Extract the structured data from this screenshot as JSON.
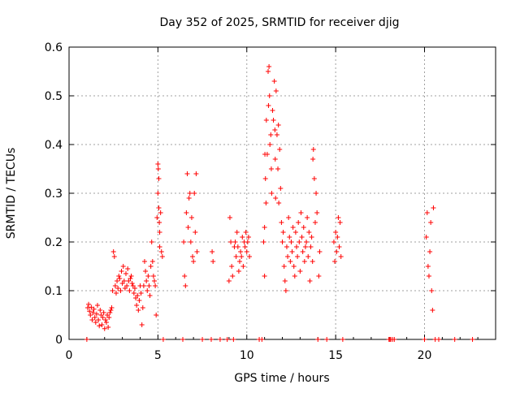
{
  "chart_data": {
    "type": "scatter",
    "title": "Day 352 of 2025, SRMTID for receiver djig",
    "xlabel": "GPS time / hours",
    "ylabel": "SRMTID / TECUs",
    "xlim": [
      0,
      24
    ],
    "ylim": [
      0,
      0.6
    ],
    "x_ticks": [
      0,
      5,
      10,
      15,
      20
    ],
    "y_ticks": [
      0,
      0.1,
      0.2,
      0.3,
      0.4,
      0.5,
      0.6
    ],
    "x_tick_labels": [
      "0",
      "5",
      "10",
      "15",
      "20"
    ],
    "y_tick_labels": [
      "0",
      "0.1",
      "0.2",
      "0.3",
      "0.4",
      "0.5",
      "0.6"
    ],
    "grid": true,
    "marker": "+",
    "marker_color": "#ff0000",
    "series": [
      {
        "name": "SRMTID",
        "points": [
          [
            1.0,
            0.0
          ],
          [
            1.05,
            0.065
          ],
          [
            1.1,
            0.072
          ],
          [
            1.15,
            0.058
          ],
          [
            1.2,
            0.05
          ],
          [
            1.25,
            0.066
          ],
          [
            1.3,
            0.04
          ],
          [
            1.35,
            0.055
          ],
          [
            1.4,
            0.062
          ],
          [
            1.45,
            0.045
          ],
          [
            1.5,
            0.035
          ],
          [
            1.55,
            0.052
          ],
          [
            1.6,
            0.07
          ],
          [
            1.65,
            0.04
          ],
          [
            1.7,
            0.028
          ],
          [
            1.75,
            0.06
          ],
          [
            1.8,
            0.05
          ],
          [
            1.85,
            0.03
          ],
          [
            1.9,
            0.045
          ],
          [
            1.95,
            0.055
          ],
          [
            2.0,
            0.022
          ],
          [
            2.05,
            0.04
          ],
          [
            2.1,
            0.035
          ],
          [
            2.15,
            0.05
          ],
          [
            2.2,
            0.025
          ],
          [
            2.25,
            0.045
          ],
          [
            2.3,
            0.055
          ],
          [
            2.35,
            0.06
          ],
          [
            2.4,
            0.065
          ],
          [
            2.45,
            0.1
          ],
          [
            2.5,
            0.18
          ],
          [
            2.55,
            0.17
          ],
          [
            2.6,
            0.11
          ],
          [
            2.65,
            0.095
          ],
          [
            2.7,
            0.12
          ],
          [
            2.75,
            0.105
          ],
          [
            2.8,
            0.13
          ],
          [
            2.85,
            0.125
          ],
          [
            2.9,
            0.1
          ],
          [
            2.95,
            0.14
          ],
          [
            3.0,
            0.115
          ],
          [
            3.05,
            0.15
          ],
          [
            3.1,
            0.12
          ],
          [
            3.15,
            0.105
          ],
          [
            3.2,
            0.135
          ],
          [
            3.25,
            0.11
          ],
          [
            3.3,
            0.145
          ],
          [
            3.35,
            0.12
          ],
          [
            3.4,
            0.1
          ],
          [
            3.45,
            0.125
          ],
          [
            3.5,
            0.13
          ],
          [
            3.55,
            0.115
          ],
          [
            3.6,
            0.11
          ],
          [
            3.65,
            0.095
          ],
          [
            3.7,
            0.105
          ],
          [
            3.75,
            0.085
          ],
          [
            3.8,
            0.07
          ],
          [
            3.85,
            0.09
          ],
          [
            3.9,
            0.06
          ],
          [
            3.95,
            0.08
          ],
          [
            4.0,
            0.11
          ],
          [
            4.05,
            0.095
          ],
          [
            4.1,
            0.03
          ],
          [
            4.15,
            0.065
          ],
          [
            4.2,
            0.11
          ],
          [
            4.25,
            0.16
          ],
          [
            4.3,
            0.14
          ],
          [
            4.35,
            0.12
          ],
          [
            4.4,
            0.1
          ],
          [
            4.45,
            0.13
          ],
          [
            4.5,
            0.11
          ],
          [
            4.55,
            0.09
          ],
          [
            4.6,
            0.15
          ],
          [
            4.65,
            0.2
          ],
          [
            4.7,
            0.16
          ],
          [
            4.75,
            0.13
          ],
          [
            4.8,
            0.12
          ],
          [
            4.85,
            0.11
          ],
          [
            4.9,
            0.05
          ],
          [
            4.95,
            0.25
          ],
          [
            5.0,
            0.3
          ],
          [
            5.0,
            0.36
          ],
          [
            5.02,
            0.35
          ],
          [
            5.05,
            0.33
          ],
          [
            5.05,
            0.27
          ],
          [
            5.08,
            0.24
          ],
          [
            5.1,
            0.22
          ],
          [
            5.1,
            0.19
          ],
          [
            5.15,
            0.26
          ],
          [
            5.2,
            0.18
          ],
          [
            5.25,
            0.17
          ],
          [
            5.3,
            0.0
          ],
          [
            6.4,
            0.0
          ],
          [
            6.45,
            0.2
          ],
          [
            6.5,
            0.13
          ],
          [
            6.55,
            0.11
          ],
          [
            6.6,
            0.26
          ],
          [
            6.65,
            0.34
          ],
          [
            6.7,
            0.23
          ],
          [
            6.75,
            0.29
          ],
          [
            6.8,
            0.3
          ],
          [
            6.85,
            0.2
          ],
          [
            6.9,
            0.25
          ],
          [
            6.95,
            0.17
          ],
          [
            7.0,
            0.16
          ],
          [
            7.05,
            0.3
          ],
          [
            7.1,
            0.22
          ],
          [
            7.15,
            0.34
          ],
          [
            7.2,
            0.18
          ],
          [
            7.5,
            0.0
          ],
          [
            8.0,
            0.0
          ],
          [
            8.05,
            0.18
          ],
          [
            8.1,
            0.16
          ],
          [
            8.5,
            0.0
          ],
          [
            8.9,
            0.0
          ],
          [
            9.0,
            0.12
          ],
          [
            9.05,
            0.25
          ],
          [
            9.1,
            0.2
          ],
          [
            9.15,
            0.15
          ],
          [
            9.2,
            0.13
          ],
          [
            9.25,
            0.0
          ],
          [
            9.3,
            0.19
          ],
          [
            9.35,
            0.2
          ],
          [
            9.4,
            0.17
          ],
          [
            9.45,
            0.22
          ],
          [
            9.5,
            0.19
          ],
          [
            9.55,
            0.14
          ],
          [
            9.6,
            0.16
          ],
          [
            9.65,
            0.18
          ],
          [
            9.7,
            0.17
          ],
          [
            9.75,
            0.21
          ],
          [
            9.8,
            0.15
          ],
          [
            9.85,
            0.2
          ],
          [
            9.9,
            0.19
          ],
          [
            9.95,
            0.22
          ],
          [
            10.0,
            0.18
          ],
          [
            10.05,
            0.2
          ],
          [
            10.1,
            0.21
          ],
          [
            10.15,
            0.17
          ],
          [
            10.7,
            0.0
          ],
          [
            10.85,
            0.0
          ],
          [
            10.95,
            0.2
          ],
          [
            11.0,
            0.23
          ],
          [
            11.0,
            0.13
          ],
          [
            11.02,
            0.38
          ],
          [
            11.05,
            0.33
          ],
          [
            11.08,
            0.28
          ],
          [
            11.1,
            0.45
          ],
          [
            11.15,
            0.38
          ],
          [
            11.2,
            0.55
          ],
          [
            11.22,
            0.48
          ],
          [
            11.25,
            0.56
          ],
          [
            11.28,
            0.5
          ],
          [
            11.3,
            0.4
          ],
          [
            11.35,
            0.42
          ],
          [
            11.38,
            0.35
          ],
          [
            11.4,
            0.3
          ],
          [
            11.45,
            0.47
          ],
          [
            11.5,
            0.45
          ],
          [
            11.55,
            0.53
          ],
          [
            11.58,
            0.43
          ],
          [
            11.6,
            0.37
          ],
          [
            11.62,
            0.29
          ],
          [
            11.65,
            0.51
          ],
          [
            11.7,
            0.42
          ],
          [
            11.75,
            0.35
          ],
          [
            11.78,
            0.44
          ],
          [
            11.8,
            0.28
          ],
          [
            11.85,
            0.39
          ],
          [
            11.9,
            0.31
          ],
          [
            11.95,
            0.24
          ],
          [
            12.0,
            0.2
          ],
          [
            12.05,
            0.22
          ],
          [
            12.1,
            0.15
          ],
          [
            12.15,
            0.12
          ],
          [
            12.2,
            0.1
          ],
          [
            12.25,
            0.19
          ],
          [
            12.3,
            0.17
          ],
          [
            12.35,
            0.25
          ],
          [
            12.4,
            0.21
          ],
          [
            12.45,
            0.16
          ],
          [
            12.5,
            0.2
          ],
          [
            12.55,
            0.18
          ],
          [
            12.6,
            0.23
          ],
          [
            12.65,
            0.15
          ],
          [
            12.7,
            0.13
          ],
          [
            12.75,
            0.22
          ],
          [
            12.8,
            0.19
          ],
          [
            12.85,
            0.17
          ],
          [
            12.9,
            0.24
          ],
          [
            12.95,
            0.2
          ],
          [
            13.0,
            0.14
          ],
          [
            13.05,
            0.26
          ],
          [
            13.1,
            0.21
          ],
          [
            13.15,
            0.18
          ],
          [
            13.2,
            0.23
          ],
          [
            13.25,
            0.16
          ],
          [
            13.3,
            0.19
          ],
          [
            13.35,
            0.2
          ],
          [
            13.4,
            0.25
          ],
          [
            13.45,
            0.17
          ],
          [
            13.5,
            0.22
          ],
          [
            13.55,
            0.12
          ],
          [
            13.6,
            0.19
          ],
          [
            13.65,
            0.21
          ],
          [
            13.7,
            0.16
          ],
          [
            13.72,
            0.37
          ],
          [
            13.75,
            0.39
          ],
          [
            13.8,
            0.33
          ],
          [
            13.85,
            0.24
          ],
          [
            13.9,
            0.3
          ],
          [
            13.95,
            0.26
          ],
          [
            14.0,
            0.0
          ],
          [
            14.05,
            0.13
          ],
          [
            14.1,
            0.18
          ],
          [
            14.5,
            0.0
          ],
          [
            14.9,
            0.2
          ],
          [
            14.95,
            0.16
          ],
          [
            15.0,
            0.22
          ],
          [
            15.05,
            0.18
          ],
          [
            15.1,
            0.21
          ],
          [
            15.15,
            0.25
          ],
          [
            15.2,
            0.19
          ],
          [
            15.25,
            0.24
          ],
          [
            15.3,
            0.17
          ],
          [
            15.4,
            0.0
          ],
          [
            18.0,
            0.0
          ],
          [
            18.05,
            0.0
          ],
          [
            18.1,
            0.0
          ],
          [
            18.2,
            0.0
          ],
          [
            18.3,
            0.0
          ],
          [
            20.0,
            0.0
          ],
          [
            20.1,
            0.21
          ],
          [
            20.15,
            0.26
          ],
          [
            20.2,
            0.15
          ],
          [
            20.25,
            0.13
          ],
          [
            20.3,
            0.18
          ],
          [
            20.35,
            0.24
          ],
          [
            20.4,
            0.1
          ],
          [
            20.45,
            0.06
          ],
          [
            20.5,
            0.27
          ],
          [
            20.6,
            0.0
          ],
          [
            20.8,
            0.0
          ],
          [
            21.7,
            0.0
          ],
          [
            22.7,
            0.0
          ]
        ]
      }
    ]
  }
}
